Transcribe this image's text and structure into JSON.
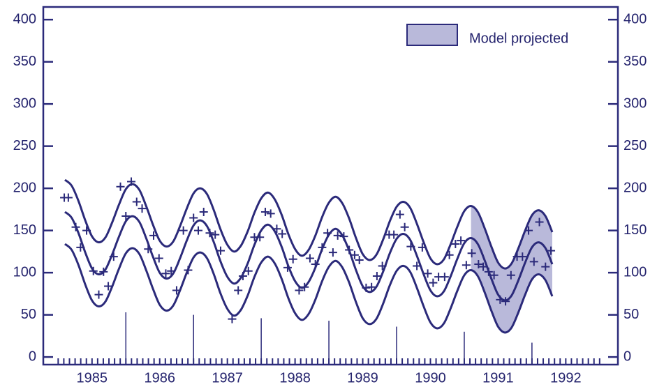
{
  "chart_data": {
    "type": "line",
    "xlim": [
      1984.78,
      1993.27
    ],
    "ylim": [
      -9,
      415
    ],
    "y2lim": [
      -9,
      415
    ],
    "yticks": [
      0,
      50,
      100,
      150,
      200,
      250,
      300,
      350,
      400
    ],
    "y2ticks": [
      0,
      50,
      100,
      150,
      200,
      250,
      300,
      350,
      400
    ],
    "xticks": [
      {
        "value": 1985.5,
        "label": "1985"
      },
      {
        "value": 1986.5,
        "label": "1986"
      },
      {
        "value": 1987.5,
        "label": "1987"
      },
      {
        "value": 1988.5,
        "label": "1988"
      },
      {
        "value": 1989.5,
        "label": "1989"
      },
      {
        "value": 1990.5,
        "label": "1990"
      },
      {
        "value": 1991.5,
        "label": "1991"
      },
      {
        "value": 1992.5,
        "label": "1992"
      }
    ],
    "minor_ticks": {
      "from": 1985,
      "to": 1993,
      "per_year": 12
    },
    "legend": "top-right",
    "x": [
      1985.1,
      1985.2,
      1985.3,
      1985.4,
      1985.5,
      1985.6,
      1985.7,
      1985.8,
      1985.9,
      1986.0,
      1986.1,
      1986.2,
      1986.3,
      1986.4,
      1986.5,
      1986.6,
      1986.7,
      1986.8,
      1986.9,
      1987.0,
      1987.1,
      1987.2,
      1987.3,
      1987.4,
      1987.5,
      1987.6,
      1987.7,
      1987.8,
      1987.9,
      1988.0,
      1988.1,
      1988.2,
      1988.3,
      1988.4,
      1988.5,
      1988.6,
      1988.7,
      1988.8,
      1988.9,
      1989.0,
      1989.1,
      1989.2,
      1989.3,
      1989.4,
      1989.5,
      1989.6,
      1989.7,
      1989.8,
      1989.9,
      1990.0,
      1990.1,
      1990.2,
      1990.3,
      1990.4,
      1990.5,
      1990.6,
      1990.7,
      1990.8,
      1990.9,
      1991.0,
      1991.1,
      1991.2,
      1991.3,
      1991.4,
      1991.5,
      1991.6,
      1991.7,
      1991.8,
      1991.9,
      1992.0,
      1992.1,
      1992.2,
      1992.3
    ],
    "series": [
      {
        "color": "#2b2a7a",
        "values": [
          210,
          203,
          185,
          162,
          143,
          136,
          142,
          160,
          181,
          199,
          205,
          198,
          179,
          157,
          138,
          131,
          137,
          155,
          176,
          194,
          200,
          193,
          174,
          151,
          133,
          125,
          132,
          149,
          171,
          188,
          195,
          187,
          169,
          146,
          128,
          120,
          127,
          144,
          166,
          183,
          190,
          182,
          164,
          141,
          122,
          115,
          121,
          139,
          161,
          178,
          184,
          177,
          158,
          136,
          117,
          110,
          116,
          134,
          155,
          173,
          179,
          172,
          153,
          131,
          112,
          105,
          111,
          129,
          150,
          168,
          174,
          167,
          148
        ]
      },
      {
        "color": "#2b2a7a",
        "values": [
          172,
          165,
          147,
          124,
          105,
          98,
          104,
          122,
          143,
          161,
          167,
          160,
          141,
          119,
          100,
          93,
          99,
          117,
          138,
          156,
          162,
          155,
          136,
          113,
          95,
          87,
          94,
          111,
          133,
          150,
          157,
          149,
          131,
          108,
          90,
          82,
          89,
          106,
          128,
          145,
          152,
          144,
          126,
          103,
          84,
          77,
          83,
          101,
          123,
          140,
          146,
          139,
          120,
          98,
          79,
          72,
          78,
          96,
          117,
          135,
          141,
          134,
          115,
          93,
          74,
          67,
          73,
          91,
          112,
          130,
          136,
          129,
          110
        ]
      },
      {
        "color": "#2b2a7a",
        "values": [
          134,
          127,
          109,
          86,
          67,
          60,
          66,
          84,
          105,
          123,
          129,
          122,
          103,
          81,
          62,
          55,
          61,
          79,
          100,
          118,
          124,
          117,
          98,
          75,
          57,
          49,
          56,
          73,
          95,
          112,
          119,
          111,
          93,
          70,
          52,
          44,
          51,
          68,
          90,
          107,
          114,
          106,
          88,
          65,
          46,
          39,
          45,
          63,
          85,
          102,
          108,
          101,
          82,
          60,
          41,
          34,
          40,
          58,
          79,
          97,
          103,
          96,
          77,
          55,
          36,
          29,
          35,
          53,
          74,
          92,
          98,
          91,
          72
        ]
      }
    ],
    "projection": {
      "name": "Model projected",
      "x_from": 1991.1,
      "color": "#b9b9da"
    },
    "scatter": {
      "color": "#2b2a7a",
      "x": [
        1985.09,
        1985.15,
        1985.26,
        1985.33,
        1985.42,
        1985.52,
        1985.6,
        1985.67,
        1985.74,
        1985.82,
        1985.92,
        1986.0,
        1986.08,
        1986.16,
        1986.24,
        1986.33,
        1986.41,
        1986.49,
        1986.59,
        1986.67,
        1986.75,
        1986.85,
        1986.92,
        1987.0,
        1987.07,
        1987.15,
        1987.24,
        1987.32,
        1987.4,
        1987.57,
        1987.66,
        1987.73,
        1987.81,
        1987.9,
        1987.98,
        1988.06,
        1988.14,
        1988.23,
        1988.31,
        1988.39,
        1988.47,
        1988.56,
        1988.64,
        1988.72,
        1988.8,
        1988.9,
        1988.98,
        1989.06,
        1989.13,
        1989.22,
        1989.3,
        1989.38,
        1989.45,
        1989.55,
        1989.63,
        1989.71,
        1989.79,
        1989.89,
        1989.96,
        1990.05,
        1990.12,
        1990.21,
        1990.3,
        1990.38,
        1990.46,
        1990.54,
        1990.62,
        1990.71,
        1990.78,
        1990.87,
        1990.95,
        1991.03,
        1991.11,
        1991.21,
        1991.28,
        1991.36,
        1991.44,
        1991.53,
        1991.61,
        1991.69,
        1991.78,
        1991.86,
        1991.95,
        1992.03,
        1992.11,
        1992.2,
        1992.28
      ],
      "values": [
        189,
        189,
        154,
        130,
        150,
        102,
        74,
        101,
        84,
        119,
        202,
        167,
        208,
        184,
        176,
        128,
        144,
        117,
        99,
        102,
        79,
        150,
        103,
        165,
        150,
        172,
        147,
        145,
        126,
        45,
        79,
        96,
        102,
        142,
        142,
        172,
        170,
        152,
        146,
        106,
        116,
        79,
        83,
        117,
        110,
        130,
        147,
        124,
        144,
        143,
        127,
        121,
        115,
        82,
        83,
        96,
        108,
        145,
        145,
        169,
        154,
        131,
        108,
        130,
        99,
        88,
        95,
        95,
        121,
        134,
        138,
        109,
        123,
        110,
        107,
        101,
        97,
        68,
        66,
        97,
        119,
        119,
        150,
        113,
        160,
        107,
        126
      ]
    },
    "stems": {
      "color": "#2b2a7a",
      "x": [
        1986,
        1987,
        1988,
        1989,
        1990,
        1991,
        1992
      ],
      "values": [
        53,
        50,
        46,
        43,
        36,
        30,
        17
      ]
    }
  }
}
